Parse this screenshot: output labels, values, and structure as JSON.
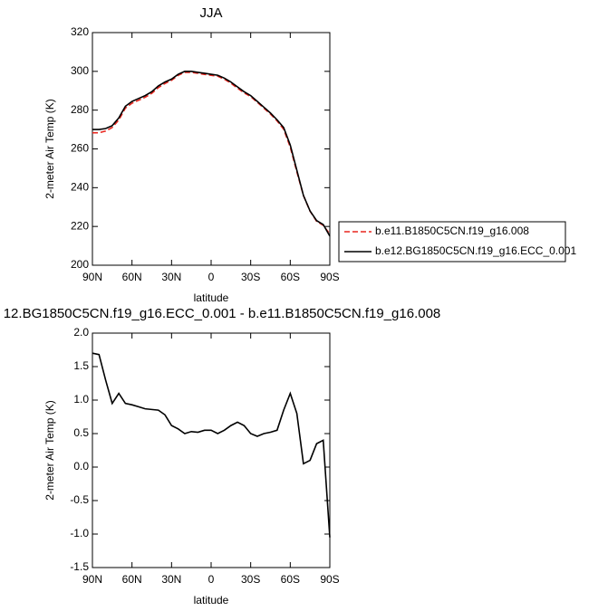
{
  "chart_data": [
    {
      "type": "line",
      "title": "JJA",
      "xlabel": "latitude",
      "ylabel": "2-meter Air Temp (K)",
      "x": [
        90,
        85,
        80,
        75,
        70,
        65,
        60,
        55,
        50,
        45,
        40,
        35,
        30,
        25,
        20,
        15,
        10,
        5,
        0,
        -5,
        -10,
        -15,
        -20,
        -25,
        -30,
        -35,
        -40,
        -45,
        -50,
        -55,
        -60,
        -65,
        -70,
        -75,
        -80,
        -85,
        -90
      ],
      "series": [
        {
          "name": "b.e11.B1850C5CN.f19_g16.008",
          "color": "#e8261e",
          "dash": true,
          "values": [
            268.3,
            268.3,
            269.2,
            271.05,
            274.9,
            281.05,
            283.57,
            285.1,
            286.63,
            288.64,
            291.65,
            293.72,
            295.38,
            297.93,
            299.5,
            299.47,
            298.98,
            298.45,
            297.95,
            297.5,
            295.95,
            293.88,
            291.33,
            288.88,
            287.0,
            284.04,
            281.0,
            277.98,
            274.45,
            270.15,
            260.9,
            248.2,
            235.95,
            227.9,
            222.65,
            220.6,
            216.05
          ]
        },
        {
          "name": "b.e12.BG1850C5CN.f19_g16.ECC_0.001",
          "color": "#000000",
          "dash": false,
          "values": [
            270,
            270,
            270.5,
            272,
            276,
            282,
            284.5,
            286,
            287.5,
            289.5,
            292.5,
            294.5,
            296,
            298.5,
            300,
            300,
            299.5,
            299,
            298.5,
            298,
            296.5,
            294.5,
            292,
            289.5,
            287.5,
            284.5,
            281.5,
            278.5,
            275,
            271,
            262,
            249,
            236,
            228,
            223,
            221,
            215
          ]
        }
      ],
      "xlim": [
        90,
        -90
      ],
      "xticks": [
        {
          "value": 90,
          "label": "90N"
        },
        {
          "value": 60,
          "label": "60N"
        },
        {
          "value": 30,
          "label": "30N"
        },
        0,
        {
          "value": -30,
          "label": "30S"
        },
        {
          "value": -60,
          "label": "60S"
        },
        {
          "value": -90,
          "label": "90S"
        }
      ],
      "ylim": [
        200,
        320
      ],
      "yticks": [
        200,
        220,
        240,
        260,
        280,
        300,
        320
      ],
      "legend": "outside-lower-right"
    },
    {
      "type": "line",
      "title": "12.BG1850C5CN.f19_g16.ECC_0.001 - b.e11.B1850C5CN.f19_g16.008",
      "xlabel": "latitude",
      "ylabel": "2-meter Air Temp (K)",
      "x": [
        90,
        85,
        80,
        75,
        70,
        65,
        60,
        55,
        50,
        45,
        40,
        35,
        30,
        25,
        20,
        15,
        10,
        5,
        0,
        -5,
        -10,
        -15,
        -20,
        -25,
        -30,
        -35,
        -40,
        -45,
        -50,
        -55,
        -60,
        -65,
        -70,
        -75,
        -80,
        -85,
        -90
      ],
      "color": "#000000",
      "values": [
        1.7,
        1.68,
        1.3,
        0.95,
        1.1,
        0.95,
        0.93,
        0.9,
        0.87,
        0.86,
        0.85,
        0.78,
        0.62,
        0.57,
        0.5,
        0.53,
        0.52,
        0.55,
        0.55,
        0.5,
        0.55,
        0.62,
        0.67,
        0.62,
        0.5,
        0.46,
        0.5,
        0.52,
        0.55,
        0.85,
        1.1,
        0.8,
        0.05,
        0.1,
        0.35,
        0.4,
        -1.05
      ],
      "xlim": [
        90,
        -90
      ],
      "xticks": [
        {
          "value": 90,
          "label": "90N"
        },
        {
          "value": 60,
          "label": "60N"
        },
        {
          "value": 30,
          "label": "30N"
        },
        0,
        {
          "value": -30,
          "label": "30S"
        },
        {
          "value": -60,
          "label": "60S"
        },
        {
          "value": -90,
          "label": "90S"
        }
      ],
      "ylim": [
        -1.5,
        2.0
      ],
      "yticks": [
        -1.5,
        {
          "value": -1.0,
          "label": "-1.0"
        },
        -0.5,
        {
          "value": 0.0,
          "label": "0.0"
        },
        0.5,
        {
          "value": 1.0,
          "label": "1.0"
        },
        1.5,
        {
          "value": 2.0,
          "label": "2.0"
        }
      ]
    }
  ]
}
